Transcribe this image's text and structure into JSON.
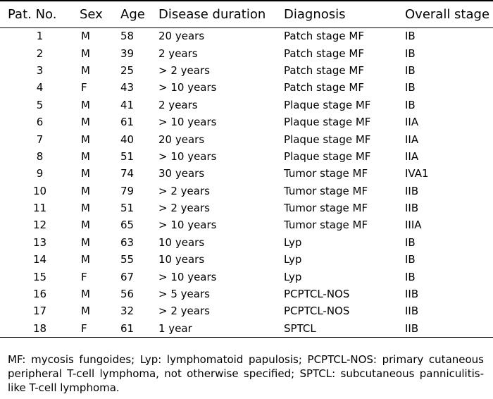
{
  "table": {
    "headers": [
      "Pat. No.",
      "Sex",
      "Age",
      "Disease duration",
      "Diagnosis",
      "Overall stage"
    ],
    "rows": [
      [
        "1",
        "M",
        "58",
        "20 years",
        "Patch stage MF",
        "IB"
      ],
      [
        "2",
        "M",
        "39",
        "2 years",
        "Patch stage MF",
        "IB"
      ],
      [
        "3",
        "M",
        "25",
        "> 2 years",
        "Patch stage MF",
        "IB"
      ],
      [
        "4",
        "F",
        "43",
        "> 10 years",
        "Patch stage MF",
        "IB"
      ],
      [
        "5",
        "M",
        "41",
        "2 years",
        "Plaque stage MF",
        "IB"
      ],
      [
        "6",
        "M",
        "61",
        "> 10 years",
        "Plaque stage MF",
        "IIA"
      ],
      [
        "7",
        "M",
        "40",
        "20 years",
        "Plaque stage MF",
        "IIA"
      ],
      [
        "8",
        "M",
        "51",
        "> 10 years",
        "Plaque stage MF",
        "IIA"
      ],
      [
        "9",
        "M",
        "74",
        "30 years",
        "Tumor stage MF",
        "IVA1"
      ],
      [
        "10",
        "M",
        "79",
        "> 2 years",
        "Tumor stage MF",
        "IIB"
      ],
      [
        "11",
        "M",
        "51",
        "> 2 years",
        "Tumor stage MF",
        "IIB"
      ],
      [
        "12",
        "M",
        "65",
        "> 10 years",
        "Tumor stage MF",
        "IIIA"
      ],
      [
        "13",
        "M",
        "63",
        "10 years",
        "Lyp",
        "IB"
      ],
      [
        "14",
        "M",
        "55",
        "10 years",
        "Lyp",
        "IB"
      ],
      [
        "15",
        "F",
        "67",
        "> 10 years",
        "Lyp",
        "IB"
      ],
      [
        "16",
        "M",
        "56",
        "> 5 years",
        "PCPTCL-NOS",
        "IIB"
      ],
      [
        "17",
        "M",
        "32",
        "> 2 years",
        "PCPTCL-NOS",
        "IIB"
      ],
      [
        "18",
        "F",
        "61",
        "1 year",
        "SPTCL",
        "IIB"
      ]
    ]
  },
  "footnote": "MF: mycosis fungoides; Lyp: lymphomatoid papulosis; PCPTCL-NOS: primary cutaneous peripheral T-cell lymphoma, not otherwise specified; SPTCL: subcutaneous panniculitis-like T-cell lymphoma."
}
